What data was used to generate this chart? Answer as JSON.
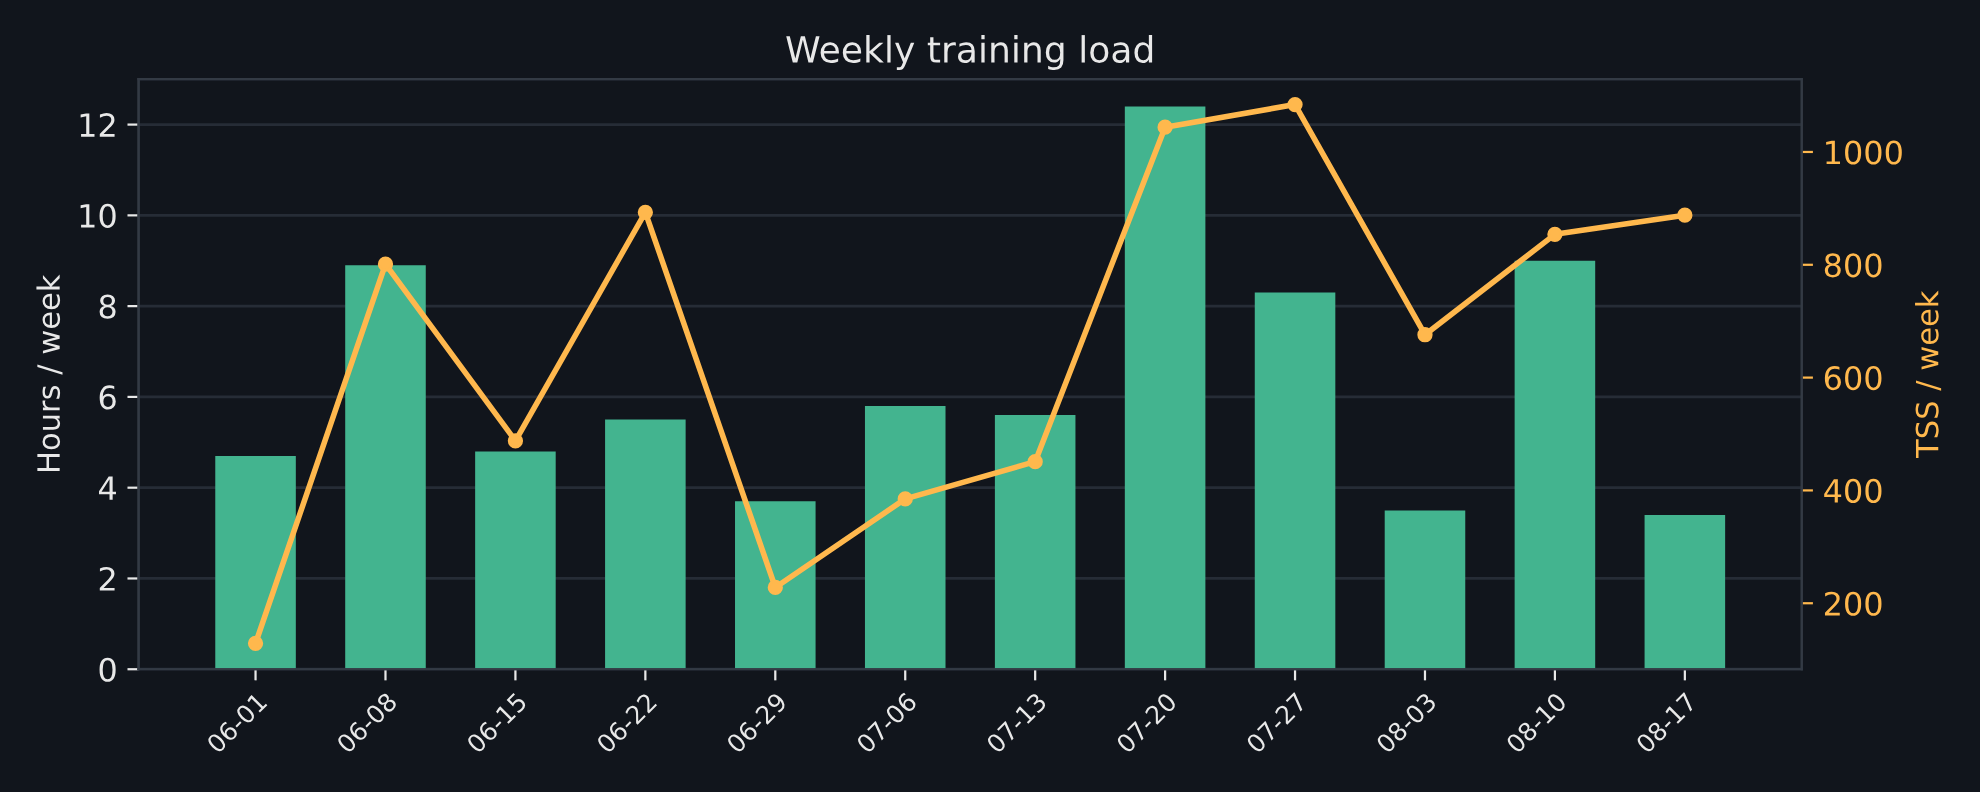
{
  "chart_data": {
    "type": "bar",
    "title": "Weekly training load",
    "ylabel": "Hours / week",
    "y2label": "TSS / week",
    "categories": [
      "06-01",
      "06-08",
      "06-15",
      "06-22",
      "06-29",
      "07-06",
      "07-13",
      "07-20",
      "07-27",
      "08-03",
      "08-10",
      "08-17"
    ],
    "series": [
      {
        "color": "#43b48f",
        "values": [
          4.7,
          8.9,
          4.8,
          5.5,
          3.7,
          5.8,
          5.6,
          12.4,
          8.3,
          3.5,
          9.0,
          3.4
        ]
      },
      {
        "type": "line",
        "axis": "y2",
        "color": "#ffb84d",
        "marker": "circle",
        "values": [
          129,
          801,
          488,
          893,
          228,
          385,
          451,
          1044,
          1084,
          676,
          854,
          888
        ]
      }
    ],
    "ylim": [
      0,
      13
    ],
    "yticks": [
      0,
      2,
      4,
      6,
      8,
      10,
      12
    ],
    "y2lim": [
      83,
      1129
    ],
    "y2ticks": [
      200,
      400,
      600,
      800,
      1000
    ],
    "grid": "y",
    "legend": false
  }
}
